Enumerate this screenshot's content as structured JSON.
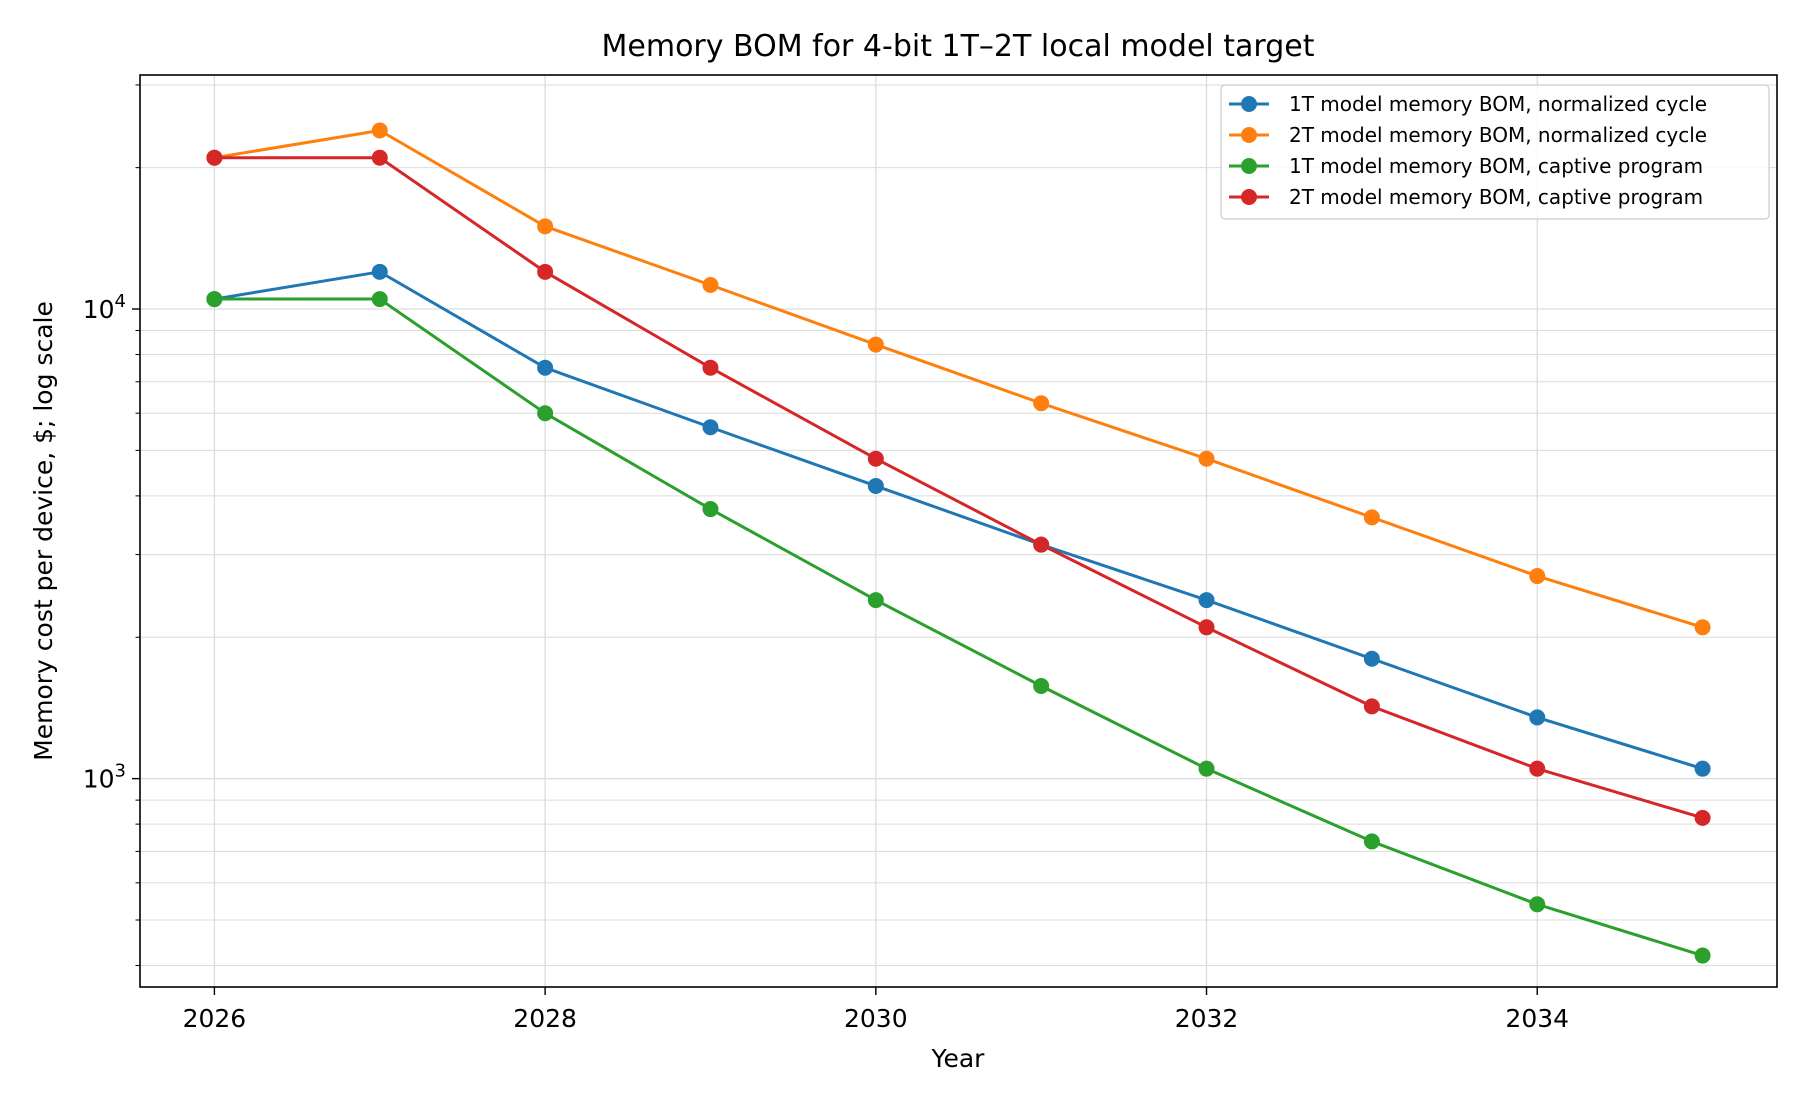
{
  "chart_data": {
    "type": "line",
    "title": "Memory BOM for 4-bit 1T–2T local model target",
    "xlabel": "Year",
    "ylabel": "Memory cost per device, $; log scale",
    "yscale": "log",
    "xlim": [
      2025.55,
      2035.45
    ],
    "ylim": [
      360,
      31500
    ],
    "grid": true,
    "legend_position": "top-right",
    "x": [
      2026,
      2027,
      2028,
      2029,
      2030,
      2031,
      2032,
      2033,
      2034,
      2035
    ],
    "x_ticks": [
      2026,
      2028,
      2030,
      2032,
      2034
    ],
    "x_tick_labels": [
      "2026",
      "2028",
      "2030",
      "2032",
      "2034"
    ],
    "y_ticks": [
      1000,
      10000
    ],
    "y_tick_labels": [
      {
        "base": "10",
        "exp": "3"
      },
      {
        "base": "10",
        "exp": "4"
      }
    ],
    "series": [
      {
        "name": "1T model memory BOM, normalized cycle",
        "color": "#1f77b4",
        "values": [
          10500,
          12000,
          7500,
          5600,
          4200,
          3150,
          2400,
          1800,
          1350,
          1050
        ]
      },
      {
        "name": "2T model memory BOM, normalized cycle",
        "color": "#ff7f0e",
        "values": [
          21000,
          24000,
          15000,
          11250,
          8400,
          6300,
          4800,
          3600,
          2700,
          2100
        ]
      },
      {
        "name": "1T model memory BOM, captive program",
        "color": "#2ca02c",
        "values": [
          10500,
          10500,
          6000,
          3750,
          2400,
          1575,
          1050,
          735,
          540,
          420
        ]
      },
      {
        "name": "2T model memory BOM, captive program",
        "color": "#d62728",
        "values": [
          21000,
          21000,
          12000,
          7500,
          4800,
          3150,
          2100,
          1425,
          1050,
          825
        ]
      }
    ]
  }
}
